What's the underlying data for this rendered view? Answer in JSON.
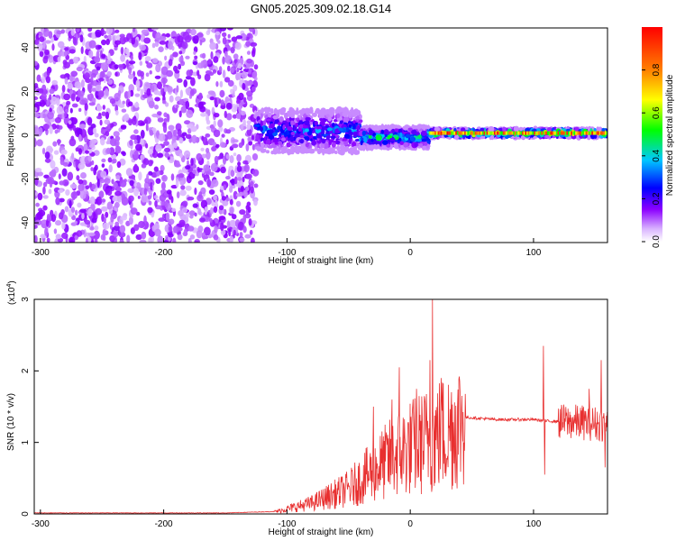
{
  "figure_title": "GN05.2025.309.02.18.G14",
  "chart_data": [
    {
      "type": "heatmap",
      "xlabel": "Height of straight line (km)",
      "ylabel": "Frequency (Hz)",
      "xlim": [
        -305,
        160
      ],
      "ylim": [
        -49,
        49
      ],
      "xticks": [
        -300,
        -200,
        -100,
        0,
        100
      ],
      "yticks": [
        -40,
        -20,
        0,
        20,
        40
      ],
      "colorbar": {
        "label": "Normalized spectral amplitude",
        "range": [
          0,
          1
        ],
        "ticks": [
          0.0,
          0.2,
          0.4,
          0.6,
          0.8
        ],
        "colors": [
          "#ffffff",
          "#8c00ff",
          "#0000ff",
          "#00c8ff",
          "#00ff00",
          "#ffff00",
          "#ff8000",
          "#ff0000"
        ]
      },
      "regions": [
        {
          "x": [
            -305,
            -125
          ],
          "description_level": "noise",
          "frequency_range": [
            -49,
            49
          ],
          "typical_amplitude": 0.05
        },
        {
          "x": [
            -125,
            -40
          ],
          "frequency_center": 2,
          "frequency_halfwidth": 10,
          "typical_amplitude": 0.3
        },
        {
          "x": [
            -40,
            15
          ],
          "frequency_center": -1,
          "frequency_halfwidth": 5,
          "typical_amplitude": 0.4
        },
        {
          "x": [
            15,
            160
          ],
          "frequency_center": 1,
          "frequency_halfwidth": 2,
          "typical_amplitude": 0.8
        }
      ]
    },
    {
      "type": "line",
      "xlabel": "Height of straight line (km)",
      "ylabel": "SNR (10 * v/v)",
      "scale_label": "(x10",
      "scale_exponent": "4",
      "xlim": [
        -305,
        160
      ],
      "ylim": [
        0,
        3
      ],
      "xticks": [
        -300,
        -200,
        -100,
        0,
        100
      ],
      "yticks": [
        0,
        1,
        2,
        3
      ],
      "color": "#e83030",
      "series_profile": [
        {
          "x": -305,
          "y": 0.01
        },
        {
          "x": -150,
          "y": 0.01
        },
        {
          "x": -110,
          "y": 0.03
        },
        {
          "x": -80,
          "y": 0.15
        },
        {
          "x": -50,
          "y": 0.35
        },
        {
          "x": -30,
          "y": 0.6
        },
        {
          "x": -10,
          "y": 0.85
        },
        {
          "x": 10,
          "y": 1.0
        },
        {
          "x": 30,
          "y": 1.15
        },
        {
          "x": 45,
          "y": 1.35
        },
        {
          "x": 70,
          "y": 1.32
        },
        {
          "x": 100,
          "y": 1.32
        },
        {
          "x": 110,
          "y": 1.3
        },
        {
          "x": 140,
          "y": 1.28
        },
        {
          "x": 160,
          "y": 1.25
        }
      ],
      "spikes": [
        {
          "x": -30,
          "y": 1.5
        },
        {
          "x": -15,
          "y": 1.6
        },
        {
          "x": -9,
          "y": 2.05
        },
        {
          "x": 5,
          "y": 1.75
        },
        {
          "x": 16,
          "y": 2.15
        },
        {
          "x": 18,
          "y": 3.0
        },
        {
          "x": 25,
          "y": 1.9
        },
        {
          "x": 108,
          "y": 2.35
        },
        {
          "x": 109,
          "y": 0.55
        },
        {
          "x": 145,
          "y": 1.75
        },
        {
          "x": 155,
          "y": 2.15
        },
        {
          "x": 158,
          "y": 0.65
        }
      ]
    }
  ]
}
